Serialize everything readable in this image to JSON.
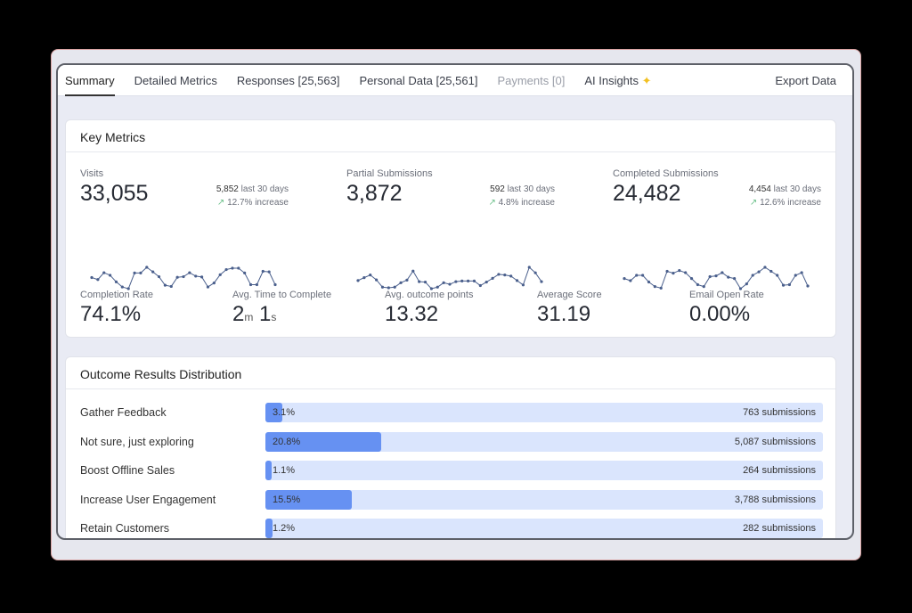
{
  "tabs": [
    {
      "label": "Summary",
      "state": "active"
    },
    {
      "label": "Detailed Metrics",
      "state": "normal"
    },
    {
      "label": "Responses [25,563]",
      "state": "normal"
    },
    {
      "label": "Personal Data [25,561]",
      "state": "normal"
    },
    {
      "label": "Payments [0]",
      "state": "disabled"
    },
    {
      "label": "AI Insights",
      "state": "normal",
      "icon": "sparkle-icon",
      "icon_glyph": "✦"
    }
  ],
  "export_label": "Export Data",
  "key_metrics": {
    "title": "Key Metrics",
    "metrics": [
      {
        "label": "Visits",
        "value": "33,055",
        "recent": "5,852",
        "recent_label": "last 30 days",
        "change": "12.7% increase",
        "spark": [
          47,
          40,
          64,
          55,
          32,
          14,
          8,
          63,
          63,
          83,
          67,
          50,
          20,
          16,
          48,
          50,
          64,
          52,
          49,
          14,
          28,
          57,
          75,
          80,
          80,
          63,
          22,
          22,
          69,
          67,
          22
        ]
      },
      {
        "label": "Partial Submissions",
        "value": "3,872",
        "recent": "592",
        "recent_label": "last 30 days",
        "change": "4.8% increase",
        "spark": [
          40,
          53,
          65,
          43,
          10,
          7,
          10,
          30,
          42,
          83,
          35,
          33,
          3,
          10,
          30,
          23,
          35,
          38,
          38,
          38,
          17,
          33,
          50,
          68,
          65,
          60,
          40,
          20,
          100,
          75,
          35
        ]
      },
      {
        "label": "Completed Submissions",
        "value": "24,482",
        "recent": "4,454",
        "recent_label": "last 30 days",
        "change": "12.6% increase",
        "spark": [
          48,
          40,
          60,
          60,
          35,
          18,
          12,
          75,
          68,
          78,
          70,
          48,
          25,
          18,
          55,
          58,
          70,
          53,
          48,
          10,
          28,
          60,
          73,
          90,
          75,
          60,
          23,
          25,
          60,
          70,
          20
        ]
      }
    ],
    "kpis": [
      {
        "label": "Completion Rate",
        "value": "74.1%"
      },
      {
        "label": "Avg. Time to Complete",
        "minutes": "2",
        "m_unit": "m",
        "seconds": "1",
        "s_unit": "s"
      },
      {
        "label": "Avg. outcome points",
        "value": "13.32"
      },
      {
        "label": "Average Score",
        "value": "31.19"
      },
      {
        "label": "Email Open Rate",
        "value": "0.00%"
      }
    ]
  },
  "distribution": {
    "title": "Outcome Results Distribution",
    "rows": [
      {
        "label": "Gather Feedback",
        "pct": 3.1,
        "pct_label": "3.1%",
        "count": "763 submissions"
      },
      {
        "label": "Not sure, just exploring",
        "pct": 20.8,
        "pct_label": "20.8%",
        "count": "5,087 submissions"
      },
      {
        "label": "Boost Offline Sales",
        "pct": 1.1,
        "pct_label": "1.1%",
        "count": "264 submissions"
      },
      {
        "label": "Increase User Engagement",
        "pct": 15.5,
        "pct_label": "15.5%",
        "count": "3,788 submissions"
      },
      {
        "label": "Retain Customers",
        "pct": 1.2,
        "pct_label": "1.2%",
        "count": "282 submissions"
      }
    ]
  },
  "colors": {
    "accent": "#6691f2",
    "track": "#dae5fd",
    "up": "#6cc08a",
    "spark": "#4a5f8c"
  }
}
